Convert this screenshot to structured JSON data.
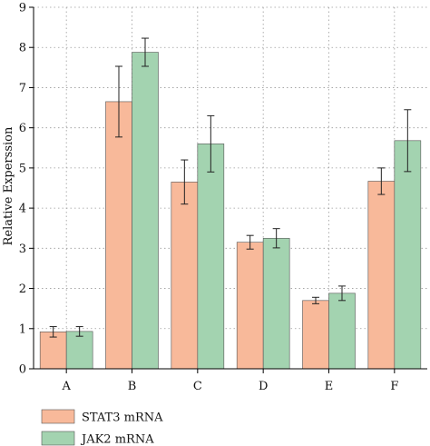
{
  "chart_data": {
    "type": "bar",
    "title": "",
    "xlabel": "",
    "ylabel": "Relative Experssion",
    "categories": [
      "A",
      "B",
      "C",
      "D",
      "E",
      "F"
    ],
    "ylim": [
      0,
      9
    ],
    "yticks": [
      0,
      1,
      2,
      3,
      4,
      5,
      6,
      7,
      8,
      9
    ],
    "grid": true,
    "legend_position": "bottom-left",
    "series": [
      {
        "name": "STAT3 mRNA",
        "color": "#f8b99a",
        "values": [
          0.92,
          6.65,
          4.65,
          3.15,
          1.7,
          4.67
        ],
        "errors": [
          0.13,
          0.88,
          0.55,
          0.17,
          0.08,
          0.33
        ]
      },
      {
        "name": "JAK2 mRNA",
        "color": "#a3d3b0",
        "values": [
          0.93,
          7.88,
          5.6,
          3.25,
          1.88,
          5.68
        ],
        "errors": [
          0.12,
          0.35,
          0.7,
          0.24,
          0.18,
          0.77
        ]
      }
    ]
  }
}
